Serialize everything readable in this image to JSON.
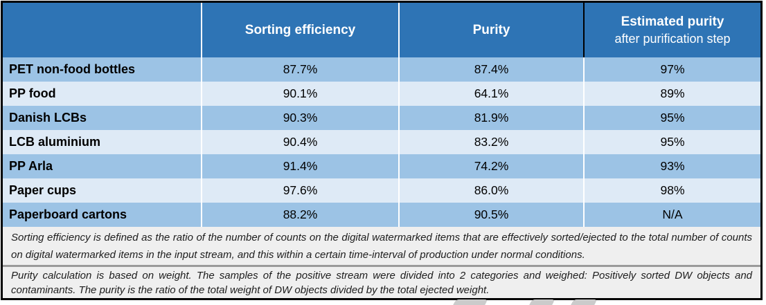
{
  "table": {
    "header": {
      "row_label": "",
      "sorting_efficiency": "Sorting efficiency",
      "purity": "Purity",
      "estimated_line1": "Estimated purity",
      "estimated_line2": "after purification step"
    },
    "rows": [
      {
        "name": "PET non-food bottles",
        "sorting_efficiency": "87.7%",
        "purity": "87.4%",
        "estimated_purity": "97%"
      },
      {
        "name": "PP food",
        "sorting_efficiency": "90.1%",
        "purity": "64.1%",
        "estimated_purity": "89%"
      },
      {
        "name": "Danish LCBs",
        "sorting_efficiency": "90.3%",
        "purity": "81.9%",
        "estimated_purity": "95%"
      },
      {
        "name": "LCB aluminium",
        "sorting_efficiency": "90.4%",
        "purity": "83.2%",
        "estimated_purity": "95%"
      },
      {
        "name": "PP Arla",
        "sorting_efficiency": "91.4%",
        "purity": "74.2%",
        "estimated_purity": "93%"
      },
      {
        "name": "Paper cups",
        "sorting_efficiency": "97.6%",
        "purity": "86.0%",
        "estimated_purity": "98%"
      },
      {
        "name": "Paperboard cartons",
        "sorting_efficiency": "88.2%",
        "purity": "90.5%",
        "estimated_purity": "N/A"
      }
    ]
  },
  "footnotes": {
    "note1": "Sorting efficiency is defined as the ratio of the number of counts on the digital watermarked items that are effectively sorted/ejected to the total number of counts on digital watermarked items in the input stream, and this within a certain time-interval of production under normal conditions.",
    "note2": "Purity calculation is based on weight. The samples of the positive stream were divided into 2 categories and weighed: Positively sorted DW objects and contaminants. The purity is the ratio of the total weight of DW objects divided by the total ejected weight."
  },
  "colors": {
    "header_bg": "#2E74B5",
    "row_medium": "#9CC3E5",
    "row_light": "#DEEAF6",
    "header_text": "#FFFFFF",
    "body_text": "#000000",
    "footnote_bg": "#EFEFEF",
    "notes_divider": "#9A9A9A",
    "table_border": "#000000"
  }
}
